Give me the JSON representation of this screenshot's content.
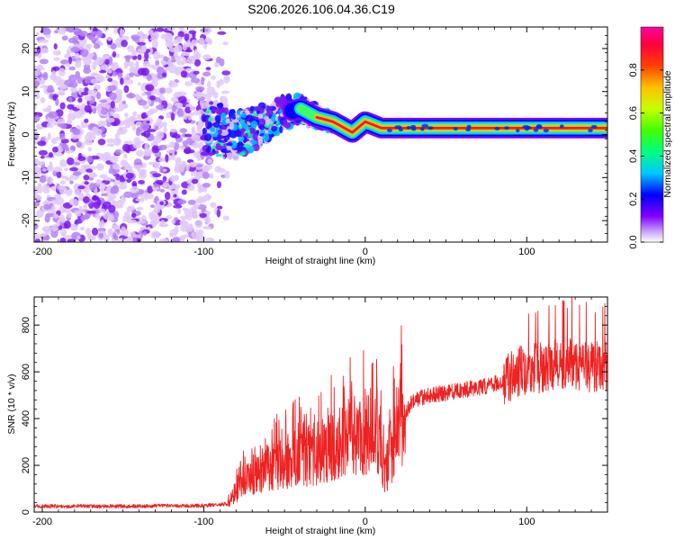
{
  "title": "S206.2026.106.04.36.C19",
  "chart_data": [
    {
      "type": "heatmap",
      "xlabel": "Height of straight line (km)",
      "ylabel": "Frequency (Hz)",
      "xlim": [
        -205,
        150
      ],
      "ylim": [
        -25,
        25
      ],
      "x_ticks": [
        -200,
        -100,
        0,
        100
      ],
      "y_ticks": [
        -20,
        -10,
        0,
        10,
        20
      ],
      "colorbar": {
        "label": "Normalized spectral amplitude",
        "range": [
          0,
          1
        ],
        "ticks": [
          0.0,
          0.2,
          0.4,
          0.6,
          0.8
        ],
        "colormap": [
          "#ffffff",
          "#c8a0f8",
          "#8000ff",
          "#0000ff",
          "#00c8ff",
          "#00ff80",
          "#40ff00",
          "#c8ff00",
          "#ffc000",
          "#ff4000",
          "#ff0040",
          "#ff00a0"
        ]
      },
      "features": {
        "noise_region_x": [
          -205,
          -95
        ],
        "transition_region_x": [
          -100,
          -10
        ],
        "signal_track": [
          {
            "x": -100,
            "freq": 2
          },
          {
            "x": -80,
            "freq": 0
          },
          {
            "x": -65,
            "freq": 2
          },
          {
            "x": -50,
            "freq": 5
          },
          {
            "x": -40,
            "freq": 6
          },
          {
            "x": -30,
            "freq": 4
          },
          {
            "x": -20,
            "freq": 3
          },
          {
            "x": -8,
            "freq": 0.5
          },
          {
            "x": 0,
            "freq": 3
          },
          {
            "x": 10,
            "freq": 1.5
          },
          {
            "x": 150,
            "freq": 1.5
          }
        ]
      }
    },
    {
      "type": "line",
      "xlabel": "Height of straight line (km)",
      "ylabel": "SNR (10 * v/v)",
      "xlim": [
        -205,
        150
      ],
      "ylim": [
        0,
        920
      ],
      "x_ticks": [
        -200,
        -100,
        0,
        100
      ],
      "y_ticks": [
        0,
        200,
        400,
        600,
        800
      ],
      "series": [
        {
          "color": "#ee2222",
          "points": [
            {
              "x": -205,
              "y": 25
            },
            {
              "x": -150,
              "y": 25
            },
            {
              "x": -100,
              "y": 28
            },
            {
              "x": -85,
              "y": 35
            },
            {
              "x": -75,
              "y": 140
            },
            {
              "x": -60,
              "y": 190
            },
            {
              "x": -45,
              "y": 230
            },
            {
              "x": -30,
              "y": 250
            },
            {
              "x": -20,
              "y": 290
            },
            {
              "x": -10,
              "y": 320
            },
            {
              "x": 0,
              "y": 330
            },
            {
              "x": 8,
              "y": 360
            },
            {
              "x": 12,
              "y": 150
            },
            {
              "x": 18,
              "y": 320
            },
            {
              "x": 25,
              "y": 430
            },
            {
              "x": 30,
              "y": 480
            },
            {
              "x": 40,
              "y": 500
            },
            {
              "x": 60,
              "y": 520
            },
            {
              "x": 75,
              "y": 540
            },
            {
              "x": 85,
              "y": 560
            },
            {
              "x": 95,
              "y": 600
            },
            {
              "x": 110,
              "y": 620
            },
            {
              "x": 125,
              "y": 640
            },
            {
              "x": 140,
              "y": 620
            },
            {
              "x": 150,
              "y": 630
            }
          ]
        }
      ]
    }
  ]
}
